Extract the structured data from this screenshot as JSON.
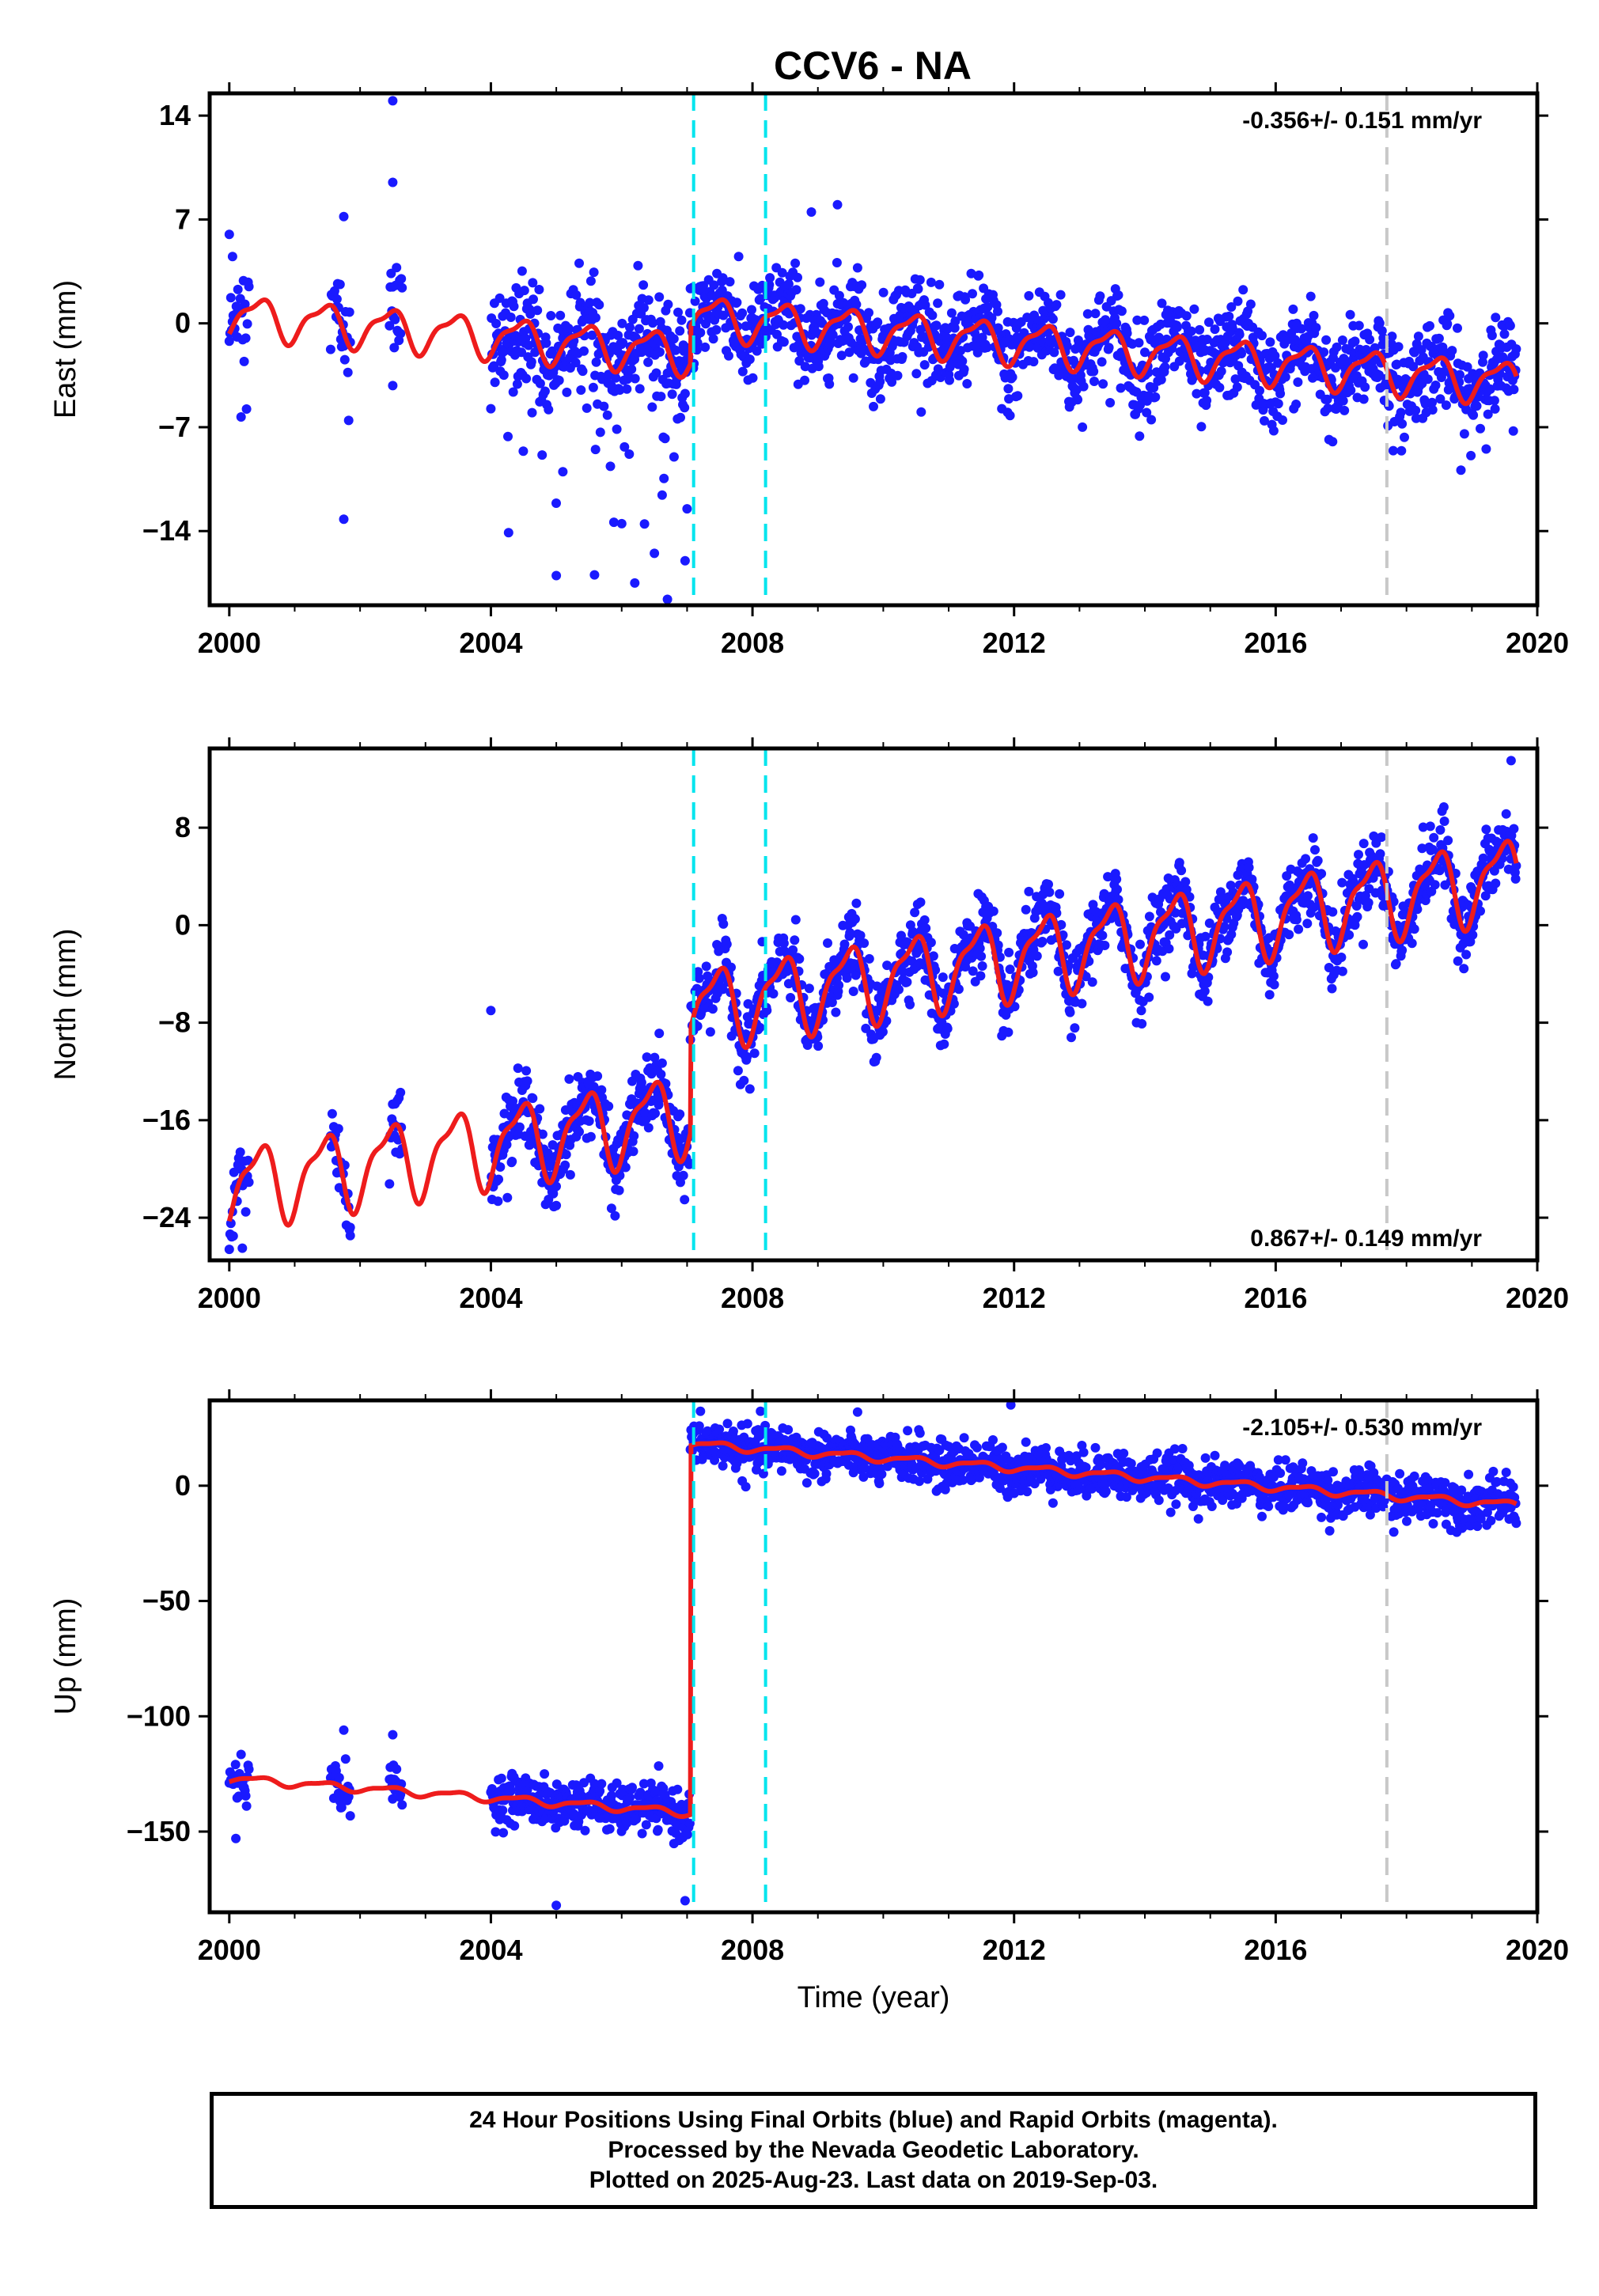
{
  "title": "CCV6 - NA",
  "colors": {
    "points": "#1a1aff",
    "model": "#ee1c1c",
    "offset_equipment": "#00e5ee",
    "offset_other": "#c8c8c8",
    "frame": "#000000"
  },
  "chart_data": [
    {
      "type": "scatter",
      "panel": "east",
      "ylabel": "East (mm)",
      "xlabel": "",
      "xlim": [
        1999.7,
        2020.0
      ],
      "ylim": [
        -19,
        15.5
      ],
      "x_ticks": [
        2000,
        2004,
        2008,
        2012,
        2016,
        2020
      ],
      "y_ticks": [
        14,
        7,
        0,
        -7,
        -14
      ],
      "y_tick_labels": [
        "14",
        "7",
        "0",
        "−7",
        "−14"
      ],
      "rate_label": "-0.356+/- 0.151 mm/yr",
      "rate_label_position": "top-right",
      "velocity_mm_per_yr": -0.356,
      "offsets_mm": {
        "2007.05": 2.5
      },
      "annual_amplitude_mm": 1.3,
      "reference_value_mm": 0.5,
      "segments": [
        [
          2000.0,
          2000.3
        ],
        [
          2001.55,
          2001.85
        ],
        [
          2002.45,
          2002.65
        ],
        [
          2004.0,
          2019.68
        ]
      ],
      "scatter_noise_mm": 1.6,
      "outliers": [
        [
          2000.0,
          6.0
        ],
        [
          2000.05,
          4.5
        ],
        [
          2001.75,
          7.2
        ],
        [
          2002.5,
          15.0
        ],
        [
          2002.5,
          9.5
        ],
        [
          2002.5,
          -4.2
        ],
        [
          2001.75,
          -13.2
        ],
        [
          2005.0,
          -17.0
        ],
        [
          2006.2,
          -17.5
        ],
        [
          2006.5,
          -15.5
        ],
        [
          2006.7,
          -18.6
        ],
        [
          2006.97,
          -16.0
        ],
        [
          2007.0,
          -12.5
        ],
        [
          2005.1,
          -10.0
        ],
        [
          2005.6,
          -8.5
        ],
        [
          2006.0,
          -13.5
        ],
        [
          2006.8,
          -9.0
        ],
        [
          2009.3,
          8.0
        ],
        [
          2008.9,
          7.5
        ],
        [
          2011.9,
          -6.0
        ]
      ],
      "period_2004_2007_low_tail": true,
      "offset_lines": [
        {
          "x": 2007.1,
          "kind": "equipment"
        },
        {
          "x": 2008.2,
          "kind": "equipment"
        },
        {
          "x": 2017.7,
          "kind": "other"
        }
      ]
    },
    {
      "type": "scatter",
      "panel": "north",
      "ylabel": "North (mm)",
      "xlabel": "",
      "xlim": [
        1999.7,
        2020.0
      ],
      "ylim": [
        -27.5,
        14.5
      ],
      "x_ticks": [
        2000,
        2004,
        2008,
        2012,
        2016,
        2020
      ],
      "y_ticks": [
        8,
        0,
        -8,
        -16,
        -24
      ],
      "y_tick_labels": [
        "8",
        "0",
        "−8",
        "−16",
        "−24"
      ],
      "rate_label": "0.867+/- 0.149 mm/yr",
      "rate_label_position": "bottom-right",
      "velocity_mm_per_yr": 0.867,
      "offsets_mm": {
        "2007.05": 8.5
      },
      "annual_amplitude_mm": 3.0,
      "reference_value_mm": -21.5,
      "segments": [
        [
          2000.0,
          2000.3
        ],
        [
          2001.55,
          2001.85
        ],
        [
          2002.45,
          2002.65
        ],
        [
          2004.0,
          2019.68
        ]
      ],
      "scatter_noise_mm": 1.5,
      "outliers": [
        [
          2000.2,
          -26.5
        ],
        [
          2001.85,
          -24.8
        ],
        [
          2004.0,
          -7.0
        ],
        [
          2005.0,
          -23.0
        ],
        [
          2019.6,
          13.5
        ]
      ],
      "offset_lines": [
        {
          "x": 2007.1,
          "kind": "equipment"
        },
        {
          "x": 2008.2,
          "kind": "equipment"
        },
        {
          "x": 2017.7,
          "kind": "other"
        }
      ]
    },
    {
      "type": "scatter",
      "panel": "up",
      "ylabel": "Up (mm)",
      "xlabel": "Time (year)",
      "xlim": [
        1999.7,
        2020.0
      ],
      "ylim": [
        -185,
        37
      ],
      "x_ticks": [
        2000,
        2004,
        2008,
        2012,
        2016,
        2020
      ],
      "y_ticks": [
        0,
        -50,
        -100,
        -150
      ],
      "y_tick_labels": [
        "0",
        "−50",
        "−100",
        "−150"
      ],
      "rate_label": "-2.105+/- 0.530 mm/yr",
      "rate_label_position": "top-right",
      "velocity_mm_per_yr": -2.105,
      "offsets_mm": {
        "2007.05": 160
      },
      "annual_amplitude_mm": 1.5,
      "reference_value_mm": -127,
      "segments": [
        [
          2000.0,
          2000.3
        ],
        [
          2001.55,
          2001.85
        ],
        [
          2002.45,
          2002.65
        ],
        [
          2004.0,
          2019.68
        ]
      ],
      "scatter_noise_mm": 5.0,
      "outliers": [
        [
          2000.1,
          -153
        ],
        [
          2001.75,
          -106
        ],
        [
          2002.5,
          -108
        ],
        [
          2005.0,
          -182
        ],
        [
          2006.97,
          -180
        ],
        [
          2011.95,
          35
        ]
      ],
      "offset_lines": [
        {
          "x": 2007.1,
          "kind": "equipment"
        },
        {
          "x": 2008.2,
          "kind": "equipment"
        },
        {
          "x": 2017.7,
          "kind": "other"
        }
      ]
    }
  ],
  "footer": {
    "line1": "24 Hour Positions Using Final Orbits (blue) and Rapid Orbits (magenta).",
    "line2": "Processed by the Nevada Geodetic Laboratory.",
    "line3": "Plotted on 2025-Aug-23. Last data on 2019-Sep-03."
  }
}
